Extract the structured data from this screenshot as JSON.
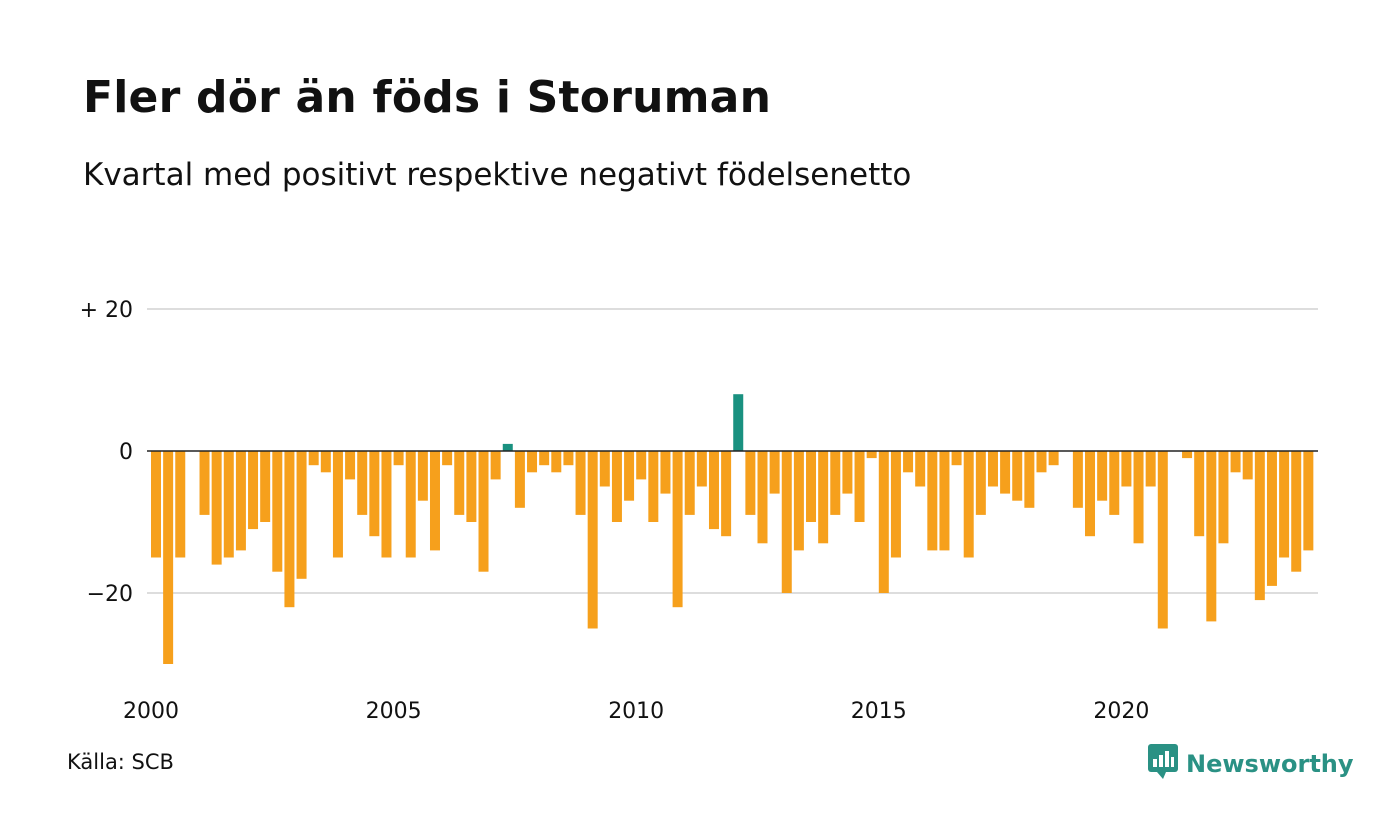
{
  "title": "Fler dör än föds i Storuman",
  "subtitle": "Kvartal med positivt respektive negativt födelsenetto",
  "source": "Källa: SCB",
  "brand": {
    "name": "Newsworthy",
    "icon": "newsworthy-logo-icon",
    "color": "#2a9184"
  },
  "chart_data": {
    "type": "bar",
    "title": "Fler dör än föds i Storuman",
    "xlabel": "",
    "ylabel": "",
    "ylim": [
      -30,
      20
    ],
    "yticks": [
      20,
      0,
      -20
    ],
    "ytick_labels": [
      "+ 20",
      "0",
      "−20"
    ],
    "xticks": [
      "2000",
      "2005",
      "2010",
      "2015",
      "2020"
    ],
    "grid": true,
    "legend": "none",
    "colors": {
      "negative": "#f6a01c",
      "positive": "#1a9180"
    },
    "start": "2000 Q1",
    "frequency": "quarterly",
    "values": [
      -15,
      -30,
      -15,
      0,
      -9,
      -16,
      -15,
      -14,
      -11,
      -10,
      -17,
      -22,
      -18,
      -2,
      -3,
      -15,
      -4,
      -9,
      -12,
      -15,
      -2,
      -15,
      -7,
      -14,
      -2,
      -9,
      -10,
      -17,
      -4,
      1,
      -8,
      -3,
      -2,
      -3,
      -2,
      -9,
      -25,
      -5,
      -10,
      -7,
      -4,
      -10,
      -6,
      -22,
      -9,
      -5,
      -11,
      -12,
      8,
      -9,
      -13,
      -6,
      -20,
      -14,
      -10,
      -13,
      -9,
      -6,
      -10,
      -1,
      -20,
      -15,
      -3,
      -5,
      -14,
      -14,
      -2,
      -15,
      -9,
      -5,
      -6,
      -7,
      -8,
      -3,
      -2,
      0,
      -8,
      -12,
      -7,
      -9,
      -5,
      -13,
      -5,
      -25,
      0,
      -1,
      -12,
      -24,
      -13,
      -3,
      -4,
      -21,
      -19,
      -15,
      -17,
      -14
    ]
  }
}
